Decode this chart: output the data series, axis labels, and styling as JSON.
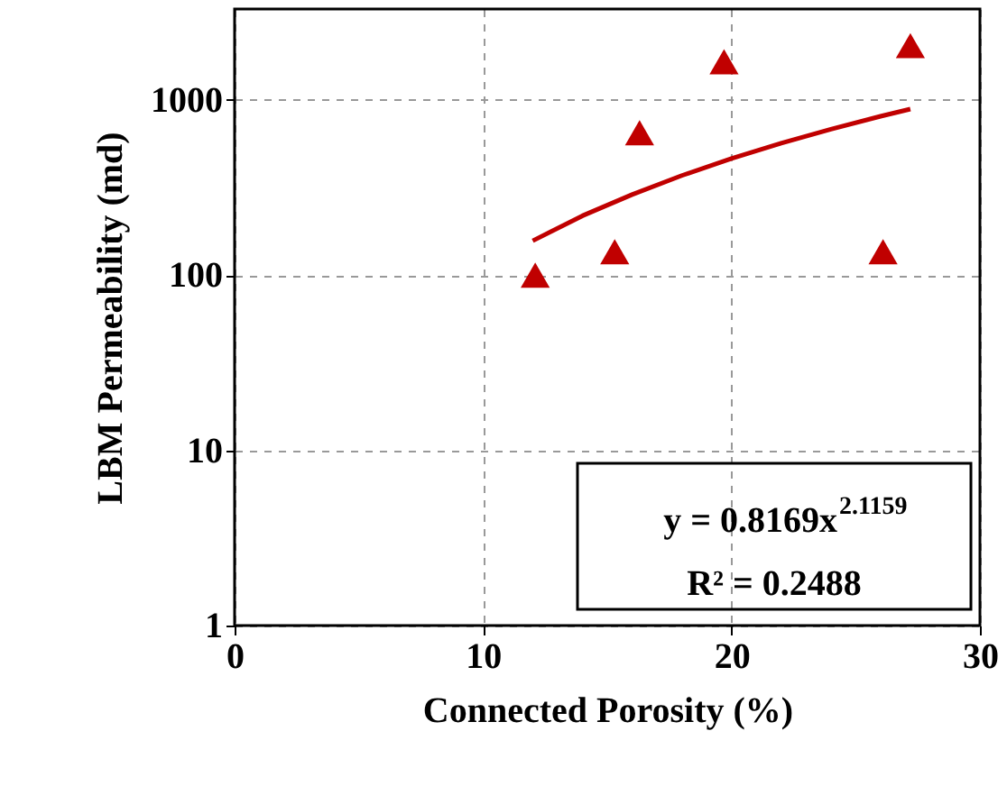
{
  "chart_data": {
    "type": "scatter",
    "xlabel": "Connected Porosity (%)",
    "ylabel": "LBM Permeability (md)",
    "log": "y",
    "grid": true,
    "xlim": [
      0,
      30
    ],
    "xticks": [
      0,
      10,
      20,
      30
    ],
    "ylim": [
      1,
      3300
    ],
    "yticks": [
      1,
      10,
      100,
      1000
    ],
    "series": [
      {
        "type": "scatter",
        "marker": "triangle",
        "color": "#c00000",
        "x": [
          12.1,
          15.3,
          16.3,
          19.7,
          26.1,
          27.2
        ],
        "values": [
          100,
          136,
          650,
          1650,
          136,
          2040
        ]
      },
      {
        "type": "line",
        "color": "#c00000",
        "x": [
          12,
          14,
          16,
          18,
          20,
          22,
          24,
          26,
          27.2
        ],
        "values": [
          157,
          218,
          288,
          370,
          463,
          566,
          680,
          806,
          886
        ]
      }
    ],
    "annotations": [
      "y = 0.8169x$^{2.1159}$",
      "R² = 0.2488"
    ]
  }
}
